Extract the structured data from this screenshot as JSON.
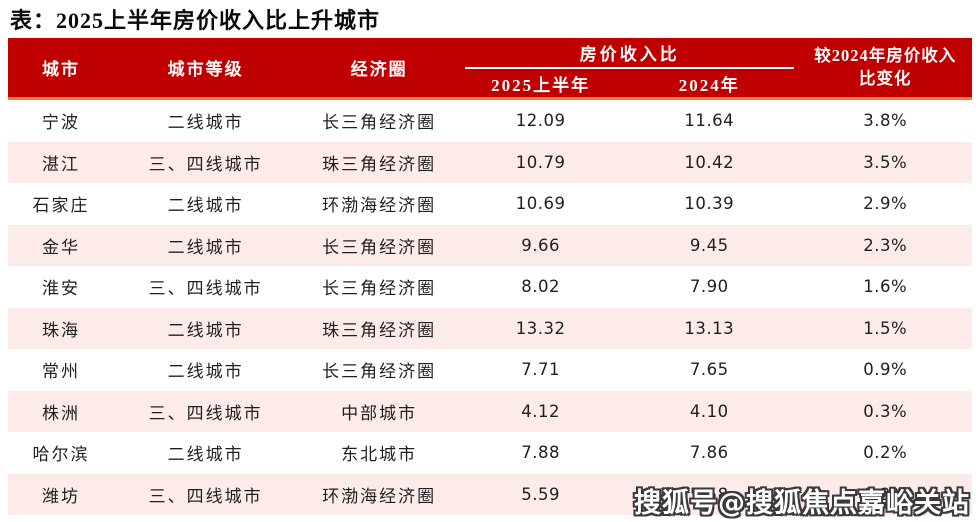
{
  "title": "表：2025上半年房价收入比上升城市",
  "watermark": "搜狐号@搜狐焦点嘉峪关站",
  "colors": {
    "header_bg": "#C00000",
    "header_underline": "#FFFFFF",
    "header_bottom_border": "#ED7D31",
    "row_alt_bg": "#FCEBE8",
    "header_text": "#FFFFFF",
    "body_text": "#1F1F1F"
  },
  "chart_data": {
    "type": "table",
    "title": "表：2025上半年房价收入比上升城市",
    "columns": {
      "city": "城市",
      "tier": "城市等级",
      "region": "经济圈",
      "ratio_group": "房价收入比",
      "ratio_2025": "2025上半年",
      "ratio_2024": "2024年",
      "change": "较2024年房价收入\n比变化"
    },
    "rows": [
      {
        "city": "宁波",
        "tier": "二线城市",
        "region": "长三角经济圈",
        "h1_2025": "12.09",
        "y2024": "11.64",
        "change": "3.8%"
      },
      {
        "city": "湛江",
        "tier": "三、四线城市",
        "region": "珠三角经济圈",
        "h1_2025": "10.79",
        "y2024": "10.42",
        "change": "3.5%"
      },
      {
        "city": "石家庄",
        "tier": "二线城市",
        "region": "环渤海经济圈",
        "h1_2025": "10.69",
        "y2024": "10.39",
        "change": "2.9%"
      },
      {
        "city": "金华",
        "tier": "二线城市",
        "region": "长三角经济圈",
        "h1_2025": "9.66",
        "y2024": "9.45",
        "change": "2.3%"
      },
      {
        "city": "淮安",
        "tier": "三、四线城市",
        "region": "长三角经济圈",
        "h1_2025": "8.02",
        "y2024": "7.90",
        "change": "1.6%"
      },
      {
        "city": "珠海",
        "tier": "二线城市",
        "region": "珠三角经济圈",
        "h1_2025": "13.32",
        "y2024": "13.13",
        "change": "1.5%"
      },
      {
        "city": "常州",
        "tier": "二线城市",
        "region": "长三角经济圈",
        "h1_2025": "7.71",
        "y2024": "7.65",
        "change": "0.9%"
      },
      {
        "city": "株洲",
        "tier": "三、四线城市",
        "region": "中部城市",
        "h1_2025": "4.12",
        "y2024": "4.10",
        "change": "0.3%"
      },
      {
        "city": "哈尔滨",
        "tier": "二线城市",
        "region": "东北城市",
        "h1_2025": "7.88",
        "y2024": "7.86",
        "change": "0.2%"
      },
      {
        "city": "潍坊",
        "tier": "三、四线城市",
        "region": "环渤海经济圈",
        "h1_2025": "5.59",
        "y2024": "5.58",
        "change": "0.2%"
      }
    ]
  }
}
